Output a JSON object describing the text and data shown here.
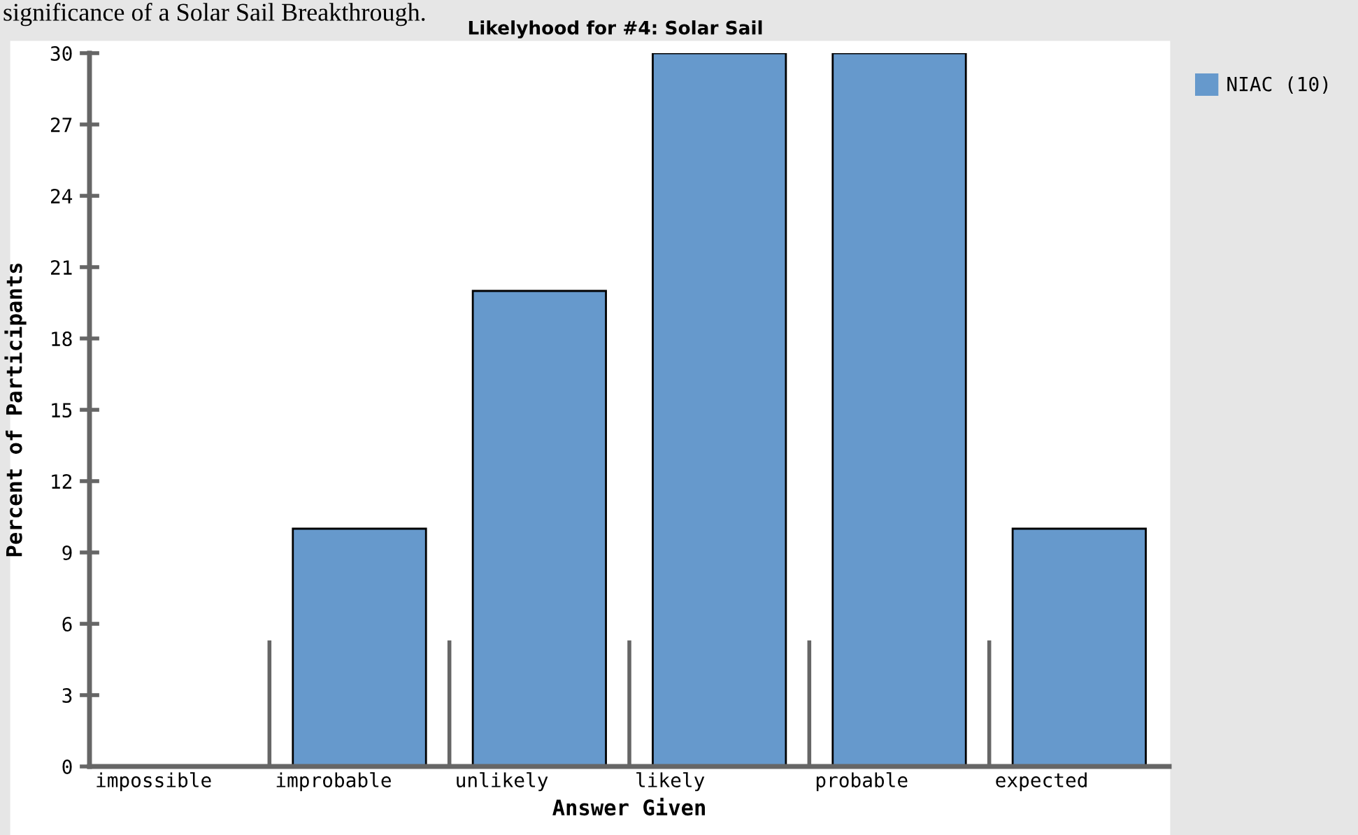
{
  "chart_data": {
    "type": "bar",
    "title": "Likelyhood for #4: Solar Sail",
    "annotations": [
      "significance of a Solar Sail Breakthrough."
    ],
    "xlabel": "Answer Given",
    "ylabel": "Percent of Participants",
    "categories": [
      "impossible",
      "improbable",
      "unlikely",
      "likely",
      "probable",
      "expected"
    ],
    "series": [
      {
        "name": "NIAC (10)",
        "color": "#6699cc",
        "values": [
          0,
          10,
          20,
          30,
          30,
          10
        ]
      }
    ],
    "ylim": [
      0,
      30
    ],
    "yticks": [
      0,
      3,
      6,
      9,
      12,
      15,
      18,
      21,
      24,
      27,
      30
    ],
    "legend": "top right",
    "grid": false
  }
}
